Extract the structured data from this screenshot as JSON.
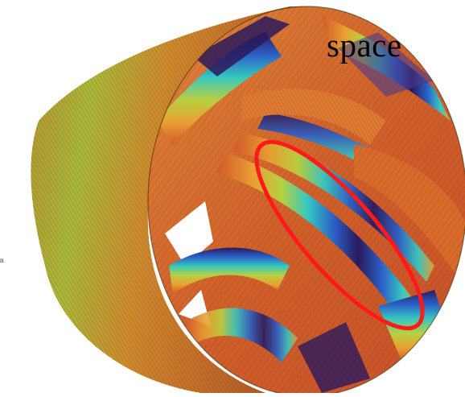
{
  "figure": {
    "title": "space",
    "side_mark": "n",
    "highlight_color": "#ff1a1a",
    "palette": {
      "orange": "#d9622a",
      "amber": "#e8942e",
      "yellow_green": "#a8c43a",
      "cyan": "#2fc3c8",
      "blue": "#2a55c0",
      "navy": "#2a1a5c"
    },
    "description_icon": "parametric-surface-render"
  }
}
